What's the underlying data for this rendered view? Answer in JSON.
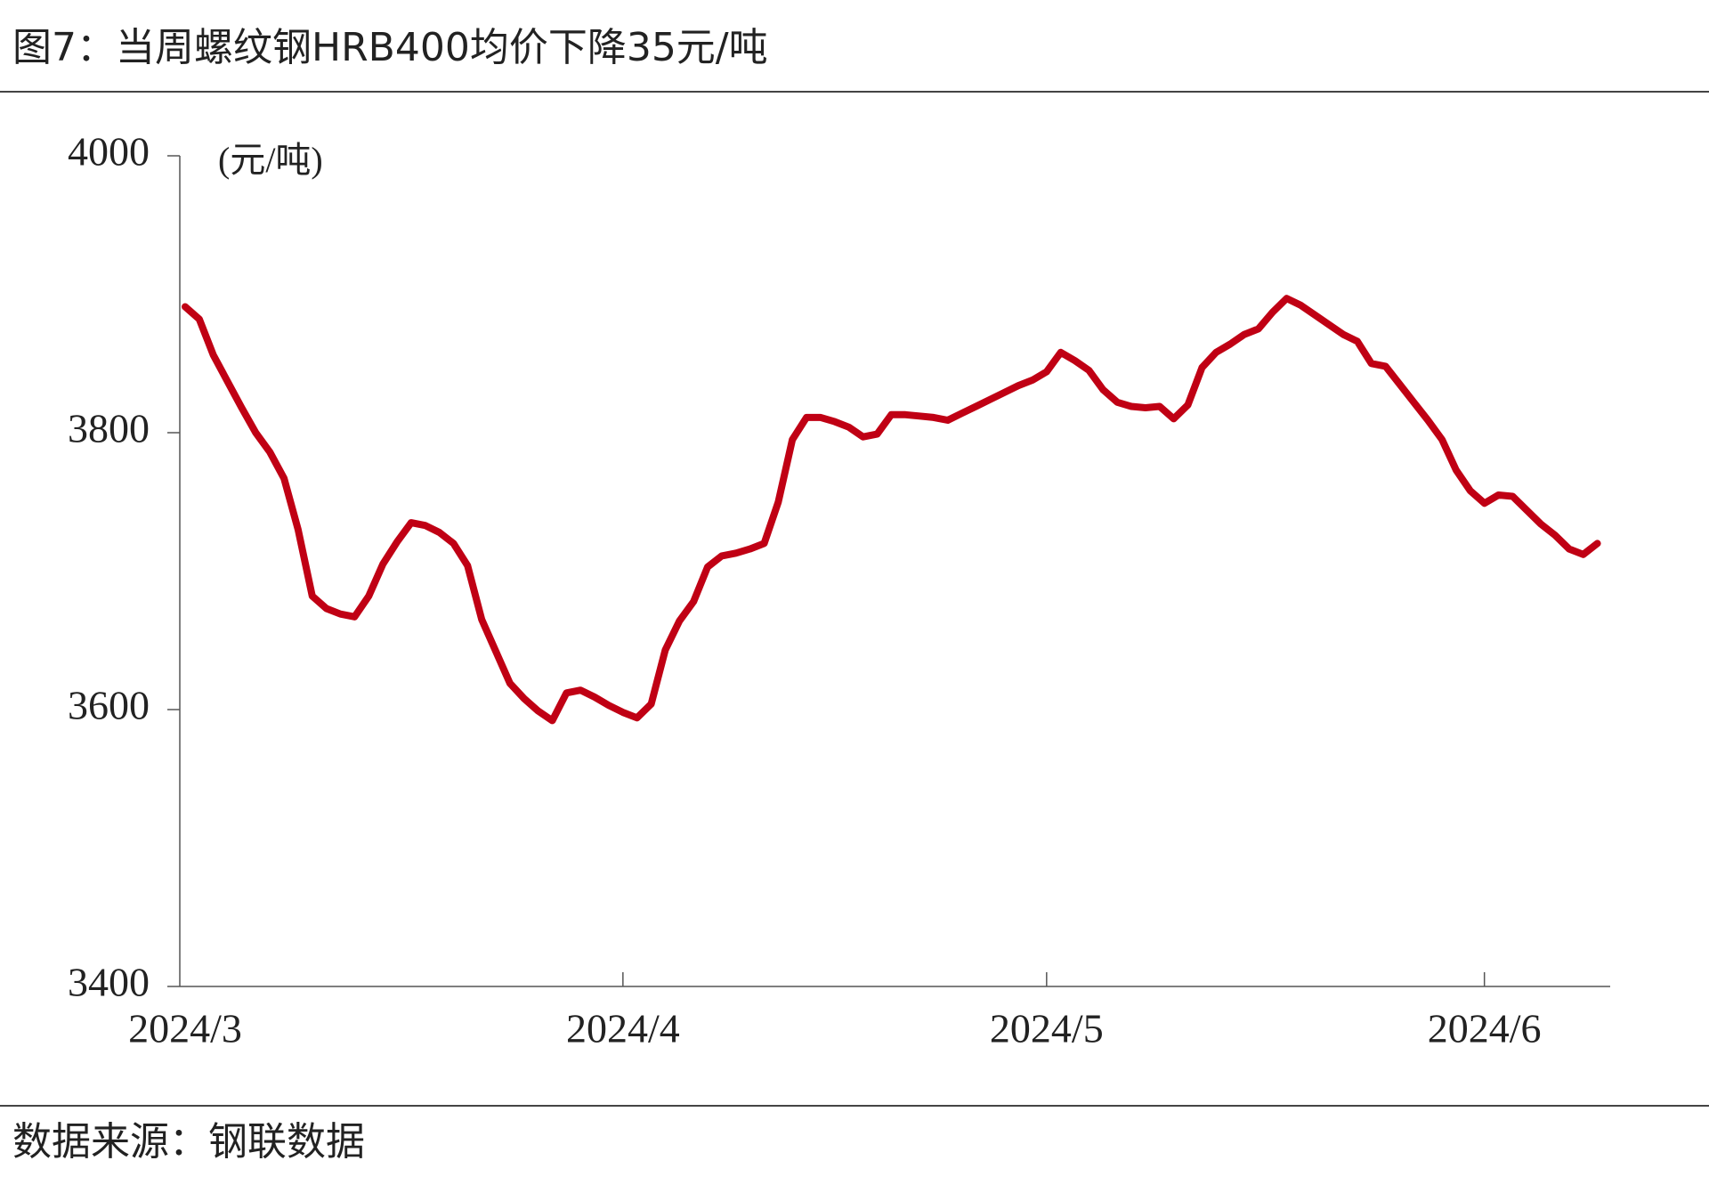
{
  "chart_data": {
    "type": "line",
    "title": "图7：当周螺纹钢HRB400均价下降35元/吨",
    "y_label": "(元/吨)",
    "source": "数据来源：钢联数据",
    "categories": [
      "2024/3",
      null,
      null,
      null,
      null,
      null,
      null,
      null,
      null,
      null,
      null,
      null,
      null,
      null,
      null,
      null,
      null,
      null,
      null,
      null,
      null,
      null,
      null,
      null,
      null,
      null,
      null,
      null,
      null,
      null,
      null,
      "2024/4",
      null,
      null,
      null,
      null,
      null,
      null,
      null,
      null,
      null,
      null,
      null,
      null,
      null,
      null,
      null,
      null,
      null,
      null,
      null,
      null,
      null,
      null,
      null,
      null,
      null,
      null,
      null,
      null,
      null,
      "2024/5",
      null,
      null,
      null,
      null,
      null,
      null,
      null,
      null,
      null,
      null,
      null,
      null,
      null,
      null,
      null,
      null,
      null,
      null,
      null,
      null,
      null,
      null,
      null,
      null,
      null,
      null,
      null,
      null,
      null,
      null,
      "2024/6",
      null,
      null,
      null,
      null,
      null,
      null,
      null,
      null
    ],
    "series": [
      {
        "color": "#c00014",
        "values": [
          3891,
          3882,
          3856,
          3837,
          3818,
          3800,
          3786,
          3767,
          3730,
          3682,
          3673,
          3669,
          3667,
          3682,
          3705,
          3721,
          3735,
          3733,
          3728,
          3720,
          3704,
          3665,
          3642,
          3619,
          3608,
          3599,
          3592,
          3612,
          3614,
          3609,
          3603,
          3598,
          3594,
          3604,
          3643,
          3664,
          3678,
          3703,
          3711,
          3713,
          3716,
          3720,
          3750,
          3795,
          3811,
          3811,
          3808,
          3804,
          3797,
          3799,
          3813,
          3813,
          3812,
          3811,
          3809,
          3814,
          3819,
          3824,
          3829,
          3834,
          3838,
          3844,
          3858,
          3852,
          3845,
          3831,
          3822,
          3819,
          3818,
          3819,
          3810,
          3820,
          3847,
          3858,
          3864,
          3871,
          3875,
          3887,
          3897,
          3892,
          3885,
          3878,
          3871,
          3866,
          3850,
          3848,
          3835,
          3822,
          3809,
          3795,
          3773,
          3758,
          3749,
          3755,
          3754,
          3744,
          3734,
          3726,
          3716,
          3712,
          3720
        ]
      }
    ],
    "ylim": [
      3400,
      4000
    ],
    "yticks": [
      3400,
      3600,
      3800,
      4000
    ],
    "grid": false
  }
}
